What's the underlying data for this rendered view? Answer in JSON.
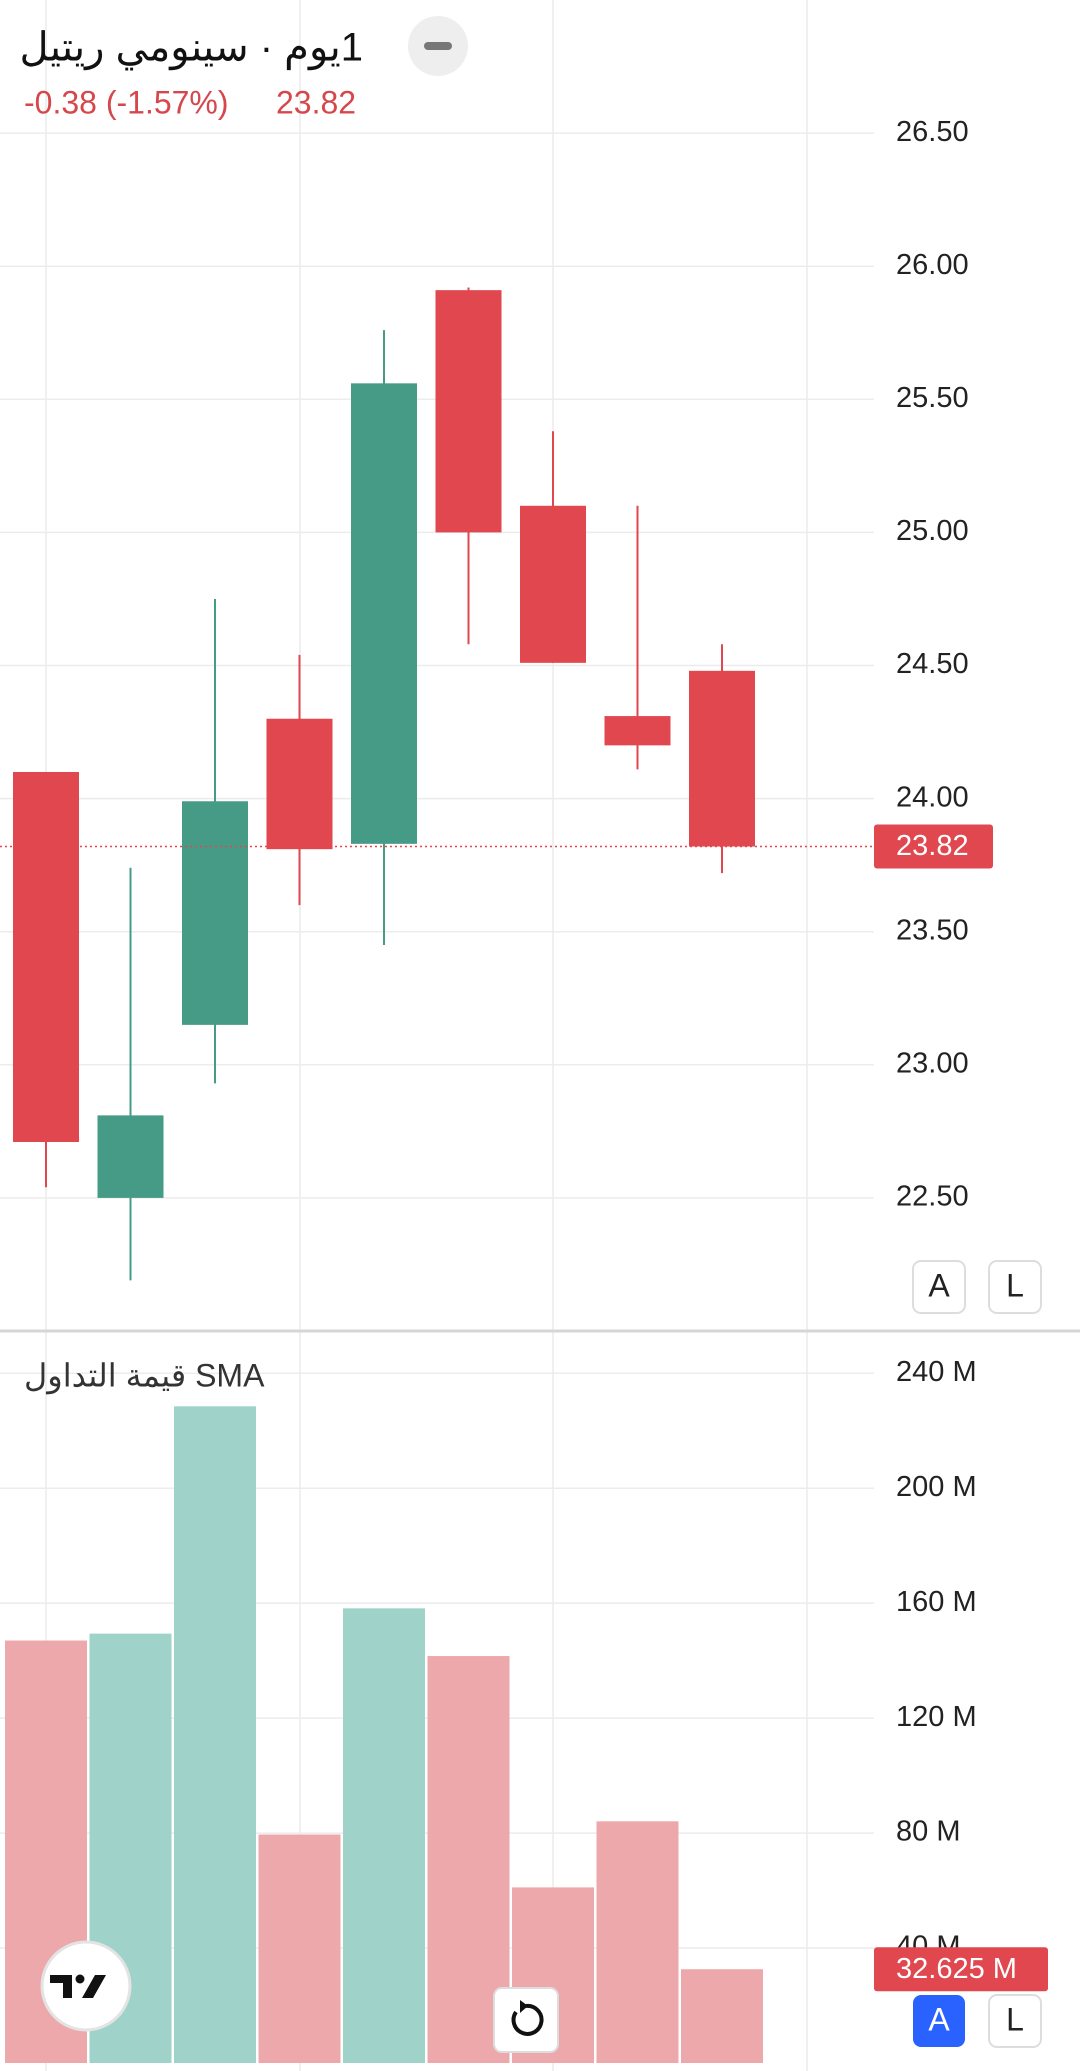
{
  "header": {
    "title": "1يوم · سينومي ريتيل",
    "change": "-0.38 (-1.57%)"
  },
  "controls": {
    "price_buttons": [
      "A",
      "L"
    ],
    "volume_buttons": [
      "A",
      "L"
    ]
  },
  "chart_data": [
    {
      "type": "candlestick",
      "open": [
        24.1,
        22.5,
        23.15,
        24.3,
        23.83,
        25.91,
        25.1,
        24.31,
        24.48
      ],
      "high": [
        24.1,
        23.74,
        24.75,
        24.54,
        25.76,
        25.92,
        25.38,
        25.1,
        24.58
      ],
      "low": [
        22.54,
        22.19,
        22.93,
        23.6,
        23.45,
        24.58,
        24.51,
        24.11,
        23.72
      ],
      "close": [
        22.71,
        22.81,
        23.99,
        23.81,
        25.56,
        25.0,
        24.51,
        24.2,
        23.82
      ],
      "up_color": "#469b87",
      "down_color": "#e0474f",
      "last_value": 23.82,
      "ylim": [
        22,
        27
      ],
      "yticks": [
        {
          "value": 22.5,
          "label": "22.50"
        },
        {
          "value": 23,
          "label": "23.00"
        },
        {
          "value": 23.5,
          "label": "23.50"
        },
        {
          "value": 24,
          "label": "24.00"
        },
        {
          "value": 24.5,
          "label": "24.50"
        },
        {
          "value": 25,
          "label": "25.00"
        },
        {
          "value": 25.5,
          "label": "25.50"
        },
        {
          "value": 26,
          "label": "26.00"
        },
        {
          "value": 26.5,
          "label": "26.50"
        }
      ],
      "grid": true
    },
    {
      "type": "bar",
      "title": "قيمة التداول SMA",
      "values": [
        147,
        149.4,
        228.5,
        79.5,
        158.2,
        141.6,
        61.1,
        84.1,
        32.625
      ],
      "colors": [
        "#eda8ab",
        "#9fd3ca",
        "#9fd3ca",
        "#eda8ab",
        "#9fd3ca",
        "#eda8ab",
        "#eda8ab",
        "#eda8ab",
        "#eda8ab"
      ],
      "last_value": {
        "value": 32.625,
        "label": "32.625 M"
      },
      "ylim": [
        0,
        254.7
      ],
      "yticks": [
        {
          "value": 40,
          "label": "40 M"
        },
        {
          "value": 80,
          "label": "80 M"
        },
        {
          "value": 120,
          "label": "120 M"
        },
        {
          "value": 160,
          "label": "160 M"
        },
        {
          "value": 200,
          "label": "200 M"
        },
        {
          "value": 240,
          "label": "240 M"
        }
      ],
      "grid": true
    }
  ]
}
